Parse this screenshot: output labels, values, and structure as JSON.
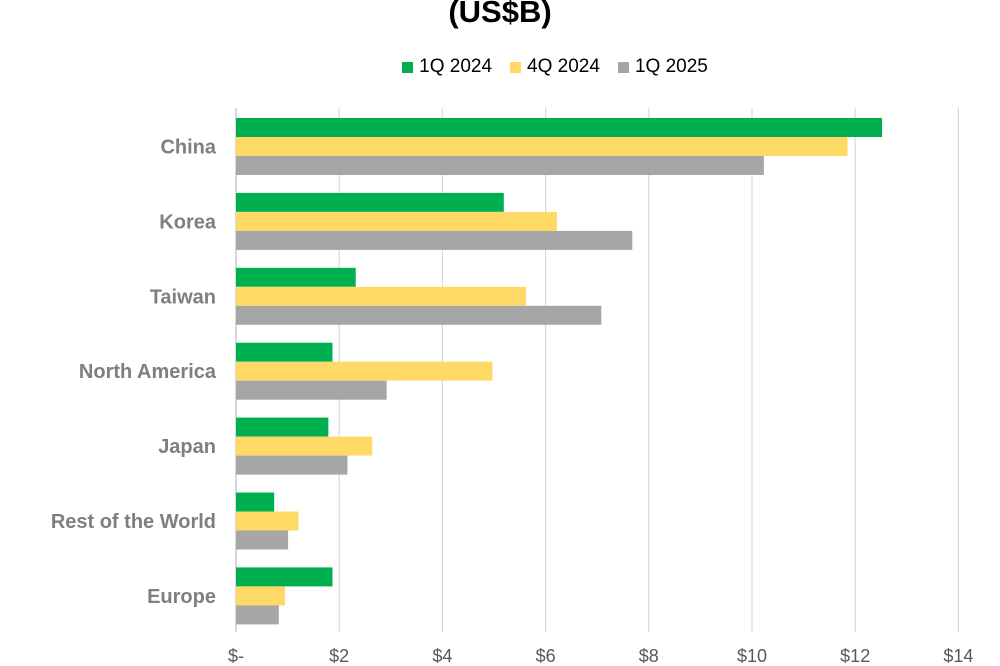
{
  "chart_data": {
    "type": "bar",
    "orientation": "horizontal",
    "title": "(US$B)",
    "categories": [
      "China",
      "Korea",
      "Taiwan",
      "North America",
      "Japan",
      "Rest of the World",
      "Europe"
    ],
    "series": [
      {
        "name": "1Q 2024",
        "color": "#00b050",
        "values": [
          12.52,
          5.19,
          2.32,
          1.87,
          1.79,
          0.74,
          1.87
        ]
      },
      {
        "name": "4Q 2024",
        "color": "#ffd966",
        "values": [
          11.85,
          6.22,
          5.62,
          4.97,
          2.64,
          1.21,
          0.95
        ]
      },
      {
        "name": "1Q 2025",
        "color": "#a6a6a6",
        "values": [
          10.23,
          7.68,
          7.08,
          2.92,
          2.16,
          1.01,
          0.83
        ]
      }
    ],
    "xlim": [
      0,
      14
    ],
    "xticks": [
      0,
      2,
      4,
      6,
      8,
      10,
      12,
      14
    ],
    "xtick_labels": [
      "$-",
      "$2",
      "$4",
      "$6",
      "$8",
      "$10",
      "$12",
      "$14"
    ],
    "grid": "vertical",
    "legend_position": "top"
  }
}
